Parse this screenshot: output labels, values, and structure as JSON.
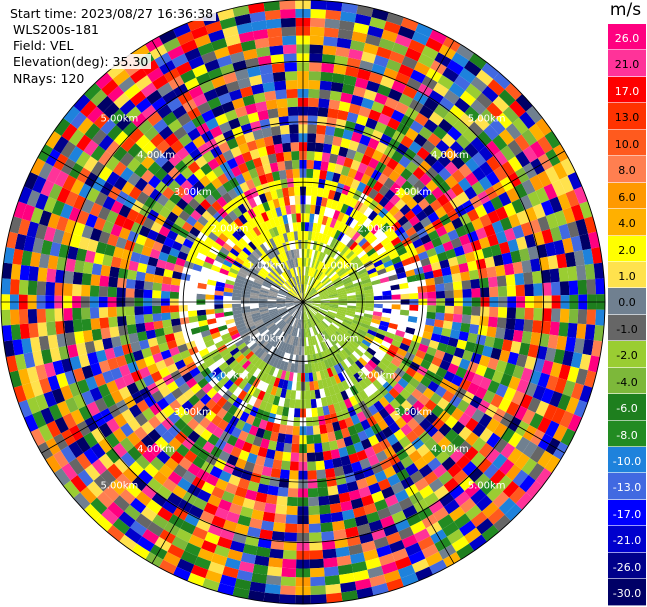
{
  "header": {
    "start_time": "Start time: 2023/08/27 16:36:38",
    "instrument": "WLS200s-181",
    "field": "Field: VEL",
    "elevation": "Elevation(deg): 35.30",
    "nrays": "NRays: 120"
  },
  "colorbar": {
    "unit": "m/s",
    "levels": [
      {
        "label": "26.0",
        "color": "#ff0080"
      },
      {
        "label": "21.0",
        "color": "#ff3399"
      },
      {
        "label": "17.0",
        "color": "#ff0000"
      },
      {
        "label": "13.0",
        "color": "#ff3300"
      },
      {
        "label": "10.0",
        "color": "#ff5a1e"
      },
      {
        "label": "8.0",
        "color": "#ff7f50"
      },
      {
        "label": "6.0",
        "color": "#ff9900"
      },
      {
        "label": "4.0",
        "color": "#ffb000"
      },
      {
        "label": "2.0",
        "color": "#ffff00"
      },
      {
        "label": "1.0",
        "color": "#ffe24d"
      },
      {
        "label": "0.0",
        "color": "#708090"
      },
      {
        "label": "-1.0",
        "color": "#666666"
      },
      {
        "label": "-2.0",
        "color": "#9acd32"
      },
      {
        "label": "-4.0",
        "color": "#7db83a"
      },
      {
        "label": "-6.0",
        "color": "#1e7f1e"
      },
      {
        "label": "-8.0",
        "color": "#228b22"
      },
      {
        "label": "-10.0",
        "color": "#1e82dc"
      },
      {
        "label": "-13.0",
        "color": "#4169e1"
      },
      {
        "label": "-17.0",
        "color": "#0000ff"
      },
      {
        "label": "-21.0",
        "color": "#0000cd"
      },
      {
        "label": "-26.0",
        "color": "#00008b"
      },
      {
        "label": "-30.0",
        "color": "#000066"
      }
    ]
  },
  "chart_data": {
    "type": "heatmap",
    "projection": "polar-ppi",
    "field": "VEL",
    "units": "m/s",
    "nrays": 120,
    "range_rings_km": [
      1.0,
      2.0,
      3.0,
      4.0,
      5.0
    ],
    "ring_labels": [
      "1.00km",
      "2.00km",
      "3.00km",
      "4.00km",
      "5.00km"
    ],
    "azimuth_lines_deg": [
      0,
      30,
      60,
      90,
      120,
      150,
      180,
      210,
      240,
      270,
      300,
      330
    ],
    "gates_per_ray": 34,
    "max_range_km": 5.0,
    "approx_near_field_pattern": [
      {
        "range_km": [
          0.0,
          1.2
        ],
        "azimuth_deg": [
          0,
          180
        ],
        "value_ms": -1.5
      },
      {
        "range_km": [
          0.0,
          1.2
        ],
        "azimuth_deg": [
          180,
          360
        ],
        "value_ms": 0.5
      },
      {
        "range_km": [
          1.0,
          2.0
        ],
        "azimuth_deg": [
          300,
          60
        ],
        "value_ms": 1.5
      },
      {
        "range_km": [
          1.0,
          2.0
        ],
        "azimuth_deg": [
          120,
          240
        ],
        "value_ms": -2.0
      }
    ],
    "far_field": "noise (random velocities across full colorbar range)"
  }
}
